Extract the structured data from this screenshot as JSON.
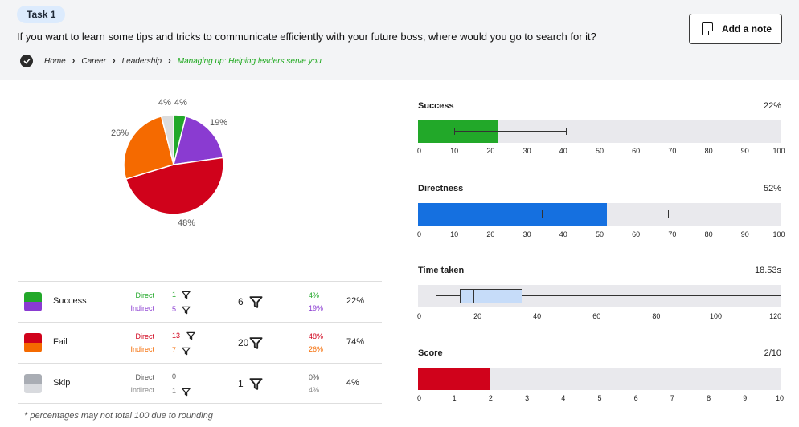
{
  "header": {
    "task_label": "Task 1",
    "question": "If you want to learn some tips and tricks to communicate efficiently with your future boss, where would you go to search for it?",
    "breadcrumb": [
      "Home",
      "Career",
      "Leadership",
      "Managing up: Helping leaders serve you"
    ],
    "add_note_label": "Add a note"
  },
  "pie": {
    "slices": [
      {
        "name": "Direct success",
        "value": 4,
        "label": "4%",
        "color": "#22a829"
      },
      {
        "name": "Indirect success",
        "value": 19,
        "label": "19%",
        "color": "#8a3bd1"
      },
      {
        "name": "Direct fail",
        "value": 48,
        "label": "48%",
        "color": "#d0021b"
      },
      {
        "name": "Indirect fail",
        "value": 26,
        "label": "26%",
        "color": "#f56a00"
      },
      {
        "name": "Skip",
        "value": 4,
        "label": "4%",
        "color": "#dcdcdc"
      }
    ]
  },
  "table": {
    "rows": [
      {
        "name": "Success",
        "direct_label": "Direct",
        "indirect_label": "Indirect",
        "direct_count": "1",
        "indirect_count": "5",
        "total": "6",
        "direct_pct": "4%",
        "indirect_pct": "19%",
        "total_pct": "22%",
        "top_color": "#22a829",
        "bottom_color": "#8a3bd1",
        "direct_color": "#22a829",
        "indirect_color": "#8a3bd1"
      },
      {
        "name": "Fail",
        "direct_label": "Direct",
        "indirect_label": "Indirect",
        "direct_count": "13",
        "indirect_count": "7",
        "total": "20",
        "direct_pct": "48%",
        "indirect_pct": "26%",
        "total_pct": "74%",
        "top_color": "#d0021b",
        "bottom_color": "#f56a00",
        "direct_color": "#d0021b",
        "indirect_color": "#f56a00"
      },
      {
        "name": "Skip",
        "direct_label": "Direct",
        "indirect_label": "Indirect",
        "direct_count": "0",
        "indirect_count": "1",
        "total": "1",
        "direct_pct": "0%",
        "indirect_pct": "4%",
        "total_pct": "4%",
        "top_color": "#a9adb4",
        "bottom_color": "#d8dade",
        "direct_color": "#555555",
        "indirect_color": "#888888"
      }
    ],
    "footnote": "* percentages may not total 100 due to rounding"
  },
  "metrics": {
    "success": {
      "title": "Success",
      "value_label": "22%",
      "value": 22,
      "ci": [
        10,
        41
      ],
      "axis_max": 100,
      "ticks": [
        "0",
        "10",
        "20",
        "30",
        "40",
        "50",
        "60",
        "70",
        "80",
        "90",
        "100"
      ],
      "color": "#22a829"
    },
    "directness": {
      "title": "Directness",
      "value_label": "52%",
      "value": 52,
      "ci": [
        34,
        69
      ],
      "axis_max": 100,
      "ticks": [
        "0",
        "10",
        "20",
        "30",
        "40",
        "50",
        "60",
        "70",
        "80",
        "90",
        "100"
      ],
      "color": "#1570e0"
    },
    "time": {
      "title": "Time taken",
      "value_label": "18.53s",
      "min": 6,
      "q1": 14,
      "median": 18.53,
      "q3": 35,
      "max": 122,
      "axis_max": 122,
      "ticks": [
        "0",
        "20",
        "40",
        "60",
        "80",
        "100",
        "120"
      ]
    },
    "score": {
      "title": "Score",
      "value_label": "2/10",
      "value": 2,
      "axis_max": 10,
      "ticks": [
        "0",
        "1",
        "2",
        "3",
        "4",
        "5",
        "6",
        "7",
        "8",
        "9",
        "10"
      ],
      "color": "#d0021b"
    }
  }
}
